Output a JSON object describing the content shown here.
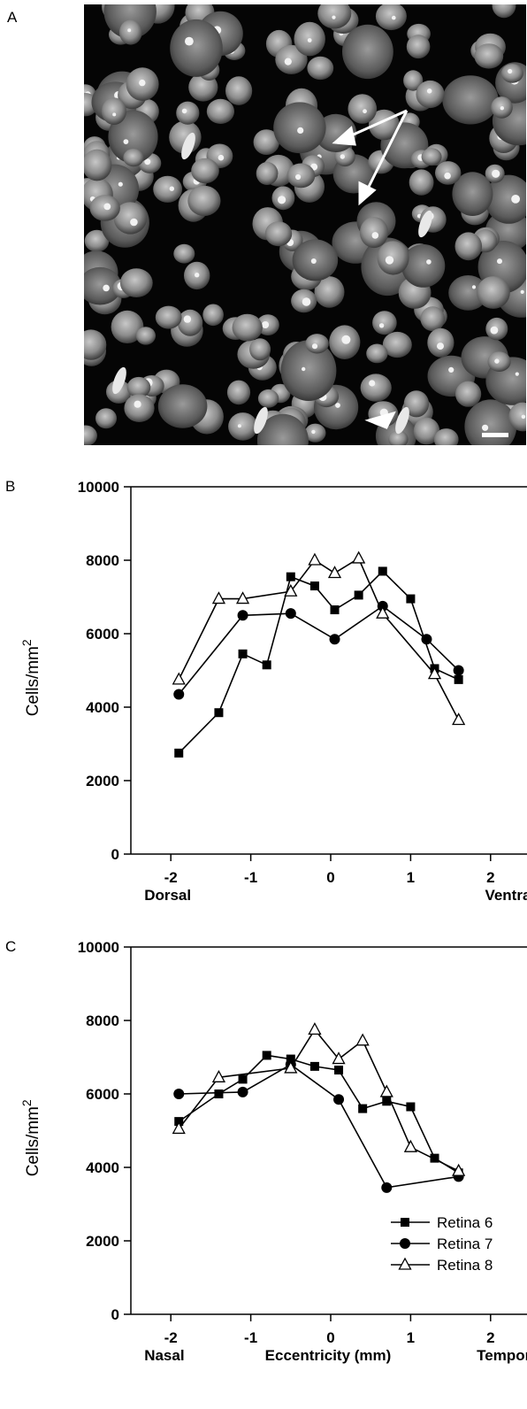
{
  "panels": {
    "a": "A",
    "b": "B",
    "c": "C"
  },
  "colors": {
    "background": "#ffffff",
    "ink": "#000000",
    "micrograph_background": "#050505",
    "nucleus": "#8a8a8a"
  },
  "chart_data": [
    {
      "panel": "B",
      "type": "line",
      "ylabel": "Cells/mm",
      "ylabel_superscript": "2",
      "ylim": [
        0,
        10000
      ],
      "xlim": [
        -2.5,
        2.5
      ],
      "yticks": [
        "0",
        "2000",
        "4000",
        "6000",
        "8000",
        "10000"
      ],
      "ytick_values": [
        0,
        2000,
        4000,
        6000,
        8000,
        10000
      ],
      "xticks": [
        "-2",
        "-1",
        "0",
        "1",
        "2"
      ],
      "xtick_values": [
        -2,
        -1,
        0,
        1,
        2
      ],
      "x_end_labels": {
        "left": "Dorsal",
        "right": "Ventral"
      },
      "grid": false,
      "series": [
        {
          "name": "Retina 6",
          "marker": "filled-square",
          "x": [
            -1.9,
            -1.4,
            -1.1,
            -0.8,
            -0.5,
            -0.2,
            0.05,
            0.35,
            0.65,
            1.0,
            1.3,
            1.6
          ],
          "values": [
            2750,
            3850,
            5450,
            5150,
            7550,
            7300,
            6650,
            7050,
            7700,
            6950,
            5050,
            4750
          ]
        },
        {
          "name": "Retina 7",
          "marker": "filled-circle",
          "x": [
            -1.9,
            -1.1,
            -0.5,
            0.05,
            0.65,
            1.2,
            1.6
          ],
          "values": [
            4350,
            6500,
            6550,
            5850,
            6750,
            5850,
            5000
          ]
        },
        {
          "name": "Retina 8",
          "marker": "open-triangle",
          "x": [
            -1.9,
            -1.4,
            -1.1,
            -0.5,
            -0.2,
            0.05,
            0.35,
            0.65,
            1.3,
            1.6
          ],
          "values": [
            4750,
            6950,
            6950,
            7150,
            8000,
            7650,
            8050,
            6550,
            4900,
            3650
          ]
        }
      ]
    },
    {
      "panel": "C",
      "type": "line",
      "ylabel": "Cells/mm",
      "ylabel_superscript": "2",
      "xlabel": "Eccentricity (mm)",
      "ylim": [
        0,
        10000
      ],
      "xlim": [
        -2.5,
        2.5
      ],
      "yticks": [
        "0",
        "2000",
        "4000",
        "6000",
        "8000",
        "10000"
      ],
      "ytick_values": [
        0,
        2000,
        4000,
        6000,
        8000,
        10000
      ],
      "xticks": [
        "-2",
        "-1",
        "0",
        "1",
        "2"
      ],
      "xtick_values": [
        -2,
        -1,
        0,
        1,
        2
      ],
      "x_end_labels": {
        "left": "Nasal",
        "right": "Temporal"
      },
      "grid": false,
      "legend": "bottom-right",
      "series": [
        {
          "name": "Retina 6",
          "marker": "filled-square",
          "x": [
            -1.9,
            -1.4,
            -1.1,
            -0.8,
            -0.5,
            -0.2,
            0.1,
            0.4,
            0.7,
            1.0,
            1.3,
            1.6
          ],
          "values": [
            5250,
            6000,
            6400,
            7050,
            6950,
            6750,
            6650,
            5600,
            5800,
            5650,
            4250,
            3850
          ]
        },
        {
          "name": "Retina 7",
          "marker": "filled-circle",
          "x": [
            -1.9,
            -1.1,
            -0.5,
            0.1,
            0.7,
            1.6
          ],
          "values": [
            6000,
            6050,
            6800,
            5850,
            3450,
            3750
          ]
        },
        {
          "name": "Retina 8",
          "marker": "open-triangle",
          "x": [
            -1.9,
            -1.4,
            -0.5,
            -0.2,
            0.1,
            0.4,
            0.7,
            1.0,
            1.6
          ],
          "values": [
            5050,
            6450,
            6700,
            7750,
            6950,
            7450,
            6050,
            4550,
            3900
          ]
        }
      ]
    }
  ]
}
